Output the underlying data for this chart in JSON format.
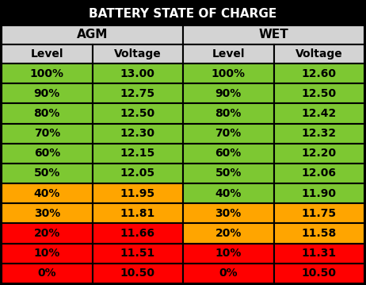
{
  "title": "BATTERY STATE OF CHARGE",
  "title_bg": "#000000",
  "title_color": "#ffffff",
  "group_headers": [
    "AGM",
    "WET"
  ],
  "col_headers": [
    "Level",
    "Voltage",
    "Level",
    "Voltage"
  ],
  "agm_data": [
    [
      "100%",
      "13.00"
    ],
    [
      "90%",
      "12.75"
    ],
    [
      "80%",
      "12.50"
    ],
    [
      "70%",
      "12.30"
    ],
    [
      "60%",
      "12.15"
    ],
    [
      "50%",
      "12.05"
    ],
    [
      "40%",
      "11.95"
    ],
    [
      "30%",
      "11.81"
    ],
    [
      "20%",
      "11.66"
    ],
    [
      "10%",
      "11.51"
    ],
    [
      "0%",
      "10.50"
    ]
  ],
  "wet_data": [
    [
      "100%",
      "12.60"
    ],
    [
      "90%",
      "12.50"
    ],
    [
      "80%",
      "12.42"
    ],
    [
      "70%",
      "12.32"
    ],
    [
      "60%",
      "12.20"
    ],
    [
      "50%",
      "12.06"
    ],
    [
      "40%",
      "11.90"
    ],
    [
      "30%",
      "11.75"
    ],
    [
      "20%",
      "11.58"
    ],
    [
      "10%",
      "11.31"
    ],
    [
      "0%",
      "10.50"
    ]
  ],
  "agm_row_colors": [
    "#7dc832",
    "#7dc832",
    "#7dc832",
    "#7dc832",
    "#7dc832",
    "#7dc832",
    "#ffa500",
    "#ffa500",
    "#ff0000",
    "#ff0000",
    "#ff0000"
  ],
  "wet_row_colors": [
    "#7dc832",
    "#7dc832",
    "#7dc832",
    "#7dc832",
    "#7dc832",
    "#7dc832",
    "#7dc832",
    "#ffa500",
    "#ffa500",
    "#ff0000",
    "#ff0000"
  ],
  "header_bg": "#d3d3d3",
  "group_header_bg": "#d3d3d3",
  "col_header_text_color": "#000000",
  "data_text_color": "#000000",
  "border_color": "#000000",
  "title_fontsize": 11,
  "group_fontsize": 11,
  "col_header_fontsize": 10,
  "data_fontsize": 10
}
